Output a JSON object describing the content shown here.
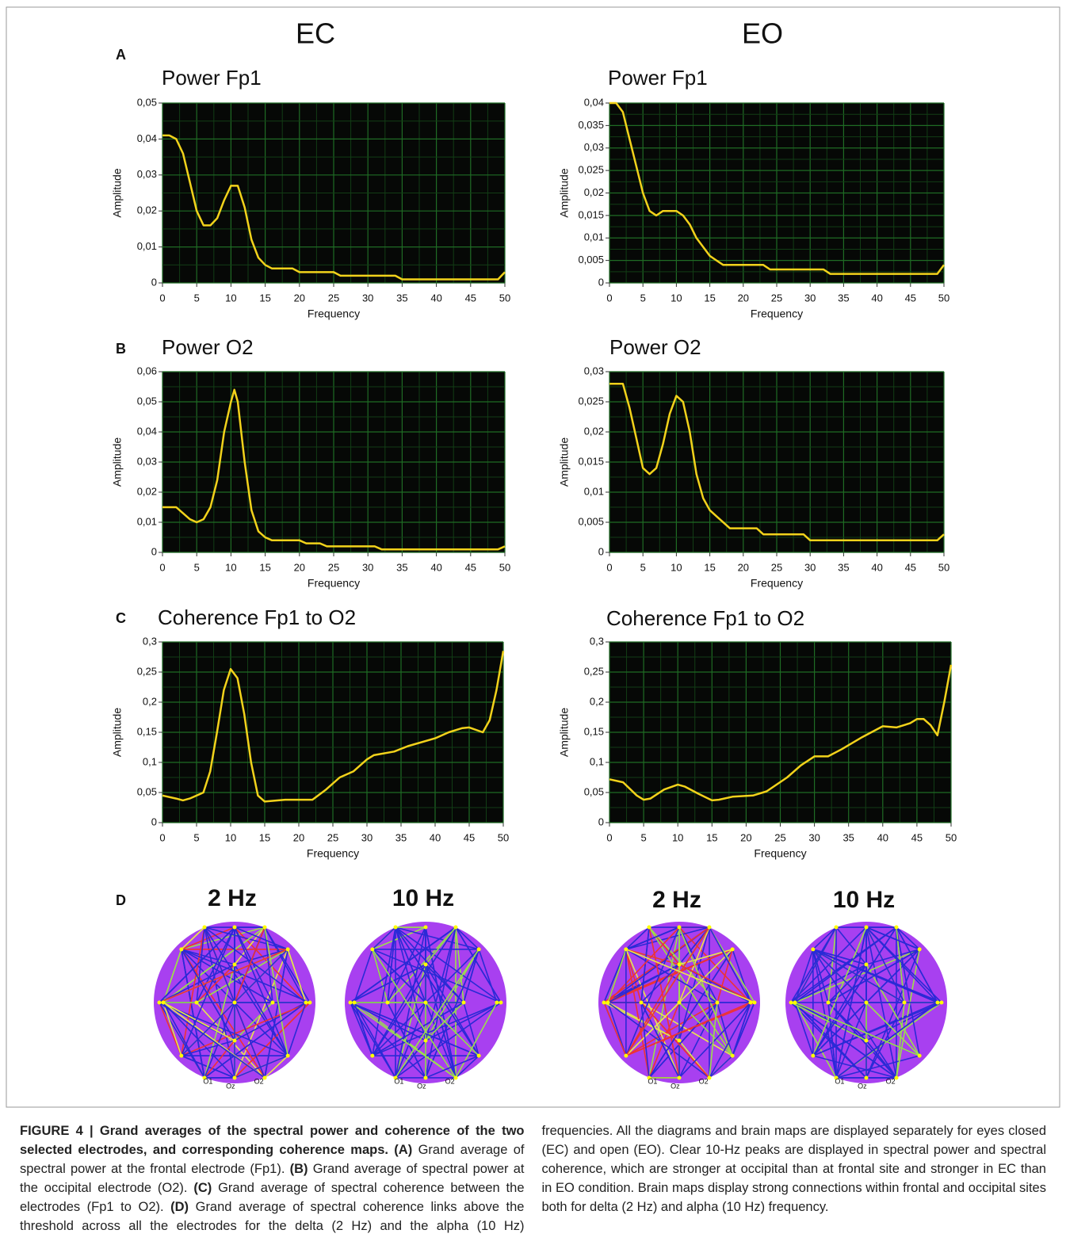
{
  "headers": {
    "left": "EC",
    "right": "EO"
  },
  "panels": [
    "A",
    "B",
    "C",
    "D"
  ],
  "maps": {
    "labels": [
      "2 Hz",
      "10 Hz",
      "2 Hz",
      "10 Hz"
    ],
    "electrodes": [
      "O1",
      "Oz",
      "O2"
    ]
  },
  "chart_data": [
    {
      "type": "line",
      "title": "Power Fp1",
      "xlabel": "Frequency",
      "ylabel": "Amplitude",
      "color": "#f2d21b",
      "grid": true,
      "x": [
        0,
        1,
        2,
        3,
        4,
        5,
        6,
        7,
        8,
        9,
        10,
        11,
        12,
        13,
        14,
        15,
        16,
        19,
        20,
        25,
        26,
        34,
        35,
        49,
        50
      ],
      "values": [
        0.041,
        0.041,
        0.04,
        0.036,
        0.028,
        0.02,
        0.016,
        0.016,
        0.018,
        0.023,
        0.027,
        0.027,
        0.021,
        0.012,
        0.007,
        0.005,
        0.004,
        0.004,
        0.003,
        0.003,
        0.002,
        0.002,
        0.001,
        0.001,
        0.003
      ],
      "xlim": [
        0,
        50
      ],
      "xticks": [
        0,
        5,
        10,
        15,
        20,
        25,
        30,
        35,
        40,
        45,
        50
      ],
      "ylim": [
        0,
        0.05
      ],
      "yticks": [
        0,
        {
          "value": 0.01,
          "label": "0,01"
        },
        {
          "value": 0.02,
          "label": "0,02"
        },
        {
          "value": 0.03,
          "label": "0,03"
        },
        {
          "value": 0.04,
          "label": "0,04"
        },
        {
          "value": 0.05,
          "label": "0,05"
        }
      ]
    },
    {
      "type": "line",
      "title": "Power Fp1",
      "xlabel": "Frequency",
      "ylabel": "Amplitude",
      "color": "#f2d21b",
      "grid": true,
      "x": [
        0,
        1,
        2,
        3,
        4,
        5,
        6,
        7,
        8,
        9,
        10,
        11,
        12,
        13,
        14,
        15,
        16,
        17,
        23,
        24,
        32,
        33,
        49,
        50
      ],
      "values": [
        0.04,
        0.04,
        0.038,
        0.032,
        0.026,
        0.02,
        0.016,
        0.015,
        0.016,
        0.016,
        0.016,
        0.015,
        0.013,
        0.01,
        0.008,
        0.006,
        0.005,
        0.004,
        0.004,
        0.003,
        0.003,
        0.002,
        0.002,
        0.004
      ],
      "xlim": [
        0,
        50
      ],
      "xticks": [
        0,
        5,
        10,
        15,
        20,
        25,
        30,
        35,
        40,
        45,
        50
      ],
      "ylim": [
        0,
        0.04
      ],
      "yticks": [
        0,
        {
          "value": 0.005,
          "label": "0,005"
        },
        {
          "value": 0.01,
          "label": "0,01"
        },
        {
          "value": 0.015,
          "label": "0,015"
        },
        {
          "value": 0.02,
          "label": "0,02"
        },
        {
          "value": 0.025,
          "label": "0,025"
        },
        {
          "value": 0.03,
          "label": "0,03"
        },
        {
          "value": 0.035,
          "label": "0,035"
        },
        {
          "value": 0.04,
          "label": "0,04"
        }
      ]
    },
    {
      "type": "line",
      "title": "Power O2",
      "xlabel": "Frequency",
      "ylabel": "Amplitude",
      "color": "#f2d21b",
      "grid": true,
      "x": [
        0,
        2,
        3,
        4,
        5,
        6,
        7,
        8,
        9,
        10,
        10.5,
        11,
        12,
        13,
        14,
        15,
        16,
        20,
        21,
        23,
        24,
        31,
        32,
        49,
        50
      ],
      "values": [
        0.015,
        0.015,
        0.013,
        0.011,
        0.01,
        0.011,
        0.015,
        0.024,
        0.04,
        0.05,
        0.054,
        0.05,
        0.03,
        0.014,
        0.007,
        0.005,
        0.004,
        0.004,
        0.003,
        0.003,
        0.002,
        0.002,
        0.001,
        0.001,
        0.002
      ],
      "xlim": [
        0,
        50
      ],
      "xticks": [
        0,
        5,
        10,
        15,
        20,
        25,
        30,
        35,
        40,
        45,
        50
      ],
      "ylim": [
        0,
        0.06
      ],
      "yticks": [
        0,
        {
          "value": 0.01,
          "label": "0,01"
        },
        {
          "value": 0.02,
          "label": "0,02"
        },
        {
          "value": 0.03,
          "label": "0,03"
        },
        {
          "value": 0.04,
          "label": "0,04"
        },
        {
          "value": 0.05,
          "label": "0,05"
        },
        {
          "value": 0.06,
          "label": "0,06"
        }
      ]
    },
    {
      "type": "line",
      "title": "Power O2",
      "xlabel": "Frequency",
      "ylabel": "Amplitude",
      "color": "#f2d21b",
      "grid": true,
      "x": [
        0,
        2,
        3,
        4,
        5,
        6,
        7,
        8,
        9,
        10,
        11,
        12,
        13,
        14,
        15,
        16,
        18,
        22,
        23,
        29,
        30,
        49,
        50
      ],
      "values": [
        0.028,
        0.028,
        0.024,
        0.019,
        0.014,
        0.013,
        0.014,
        0.018,
        0.023,
        0.026,
        0.025,
        0.02,
        0.013,
        0.009,
        0.007,
        0.006,
        0.004,
        0.004,
        0.003,
        0.003,
        0.002,
        0.002,
        0.003
      ],
      "xlim": [
        0,
        50
      ],
      "xticks": [
        0,
        5,
        10,
        15,
        20,
        25,
        30,
        35,
        40,
        45,
        50
      ],
      "ylim": [
        0,
        0.03
      ],
      "yticks": [
        0,
        {
          "value": 0.005,
          "label": "0,005"
        },
        {
          "value": 0.01,
          "label": "0,01"
        },
        {
          "value": 0.015,
          "label": "0,015"
        },
        {
          "value": 0.02,
          "label": "0,02"
        },
        {
          "value": 0.025,
          "label": "0,025"
        },
        {
          "value": 0.03,
          "label": "0,03"
        }
      ]
    },
    {
      "type": "line",
      "title": "Coherence Fp1 to O2",
      "xlabel": "Frequency",
      "ylabel": "Amplitude",
      "color": "#f2d21b",
      "grid": true,
      "x": [
        0,
        2,
        3,
        4,
        6,
        7,
        8,
        9,
        10,
        11,
        12,
        13,
        14,
        15,
        18,
        22,
        24,
        26,
        28,
        30,
        31,
        34,
        36,
        40,
        42,
        44,
        45,
        47,
        48,
        49,
        50
      ],
      "values": [
        0.045,
        0.04,
        0.037,
        0.04,
        0.05,
        0.085,
        0.15,
        0.22,
        0.255,
        0.24,
        0.18,
        0.1,
        0.045,
        0.035,
        0.038,
        0.038,
        0.055,
        0.075,
        0.085,
        0.105,
        0.112,
        0.118,
        0.127,
        0.14,
        0.15,
        0.157,
        0.158,
        0.15,
        0.17,
        0.22,
        0.285
      ],
      "xlim": [
        0,
        50
      ],
      "xticks": [
        0,
        5,
        10,
        15,
        20,
        25,
        30,
        35,
        40,
        45,
        50
      ],
      "ylim": [
        0,
        0.3
      ],
      "yticks": [
        0,
        {
          "value": 0.05,
          "label": "0,05"
        },
        {
          "value": 0.1,
          "label": "0,1"
        },
        {
          "value": 0.15,
          "label": "0,15"
        },
        {
          "value": 0.2,
          "label": "0,2"
        },
        {
          "value": 0.25,
          "label": "0,25"
        },
        {
          "value": 0.3,
          "label": "0,3"
        }
      ]
    },
    {
      "type": "line",
      "title": "Coherence Fp1 to O2",
      "xlabel": "Frequency",
      "ylabel": "Amplitude",
      "color": "#f2d21b",
      "grid": true,
      "x": [
        0,
        2,
        4,
        5,
        6,
        8,
        10,
        11,
        13,
        15,
        16,
        18,
        21,
        23,
        26,
        28,
        30,
        32,
        34,
        37,
        40,
        42,
        44,
        45,
        46,
        47,
        48,
        49,
        50
      ],
      "values": [
        0.072,
        0.067,
        0.045,
        0.038,
        0.04,
        0.055,
        0.063,
        0.06,
        0.048,
        0.037,
        0.038,
        0.043,
        0.045,
        0.052,
        0.075,
        0.095,
        0.11,
        0.11,
        0.122,
        0.142,
        0.16,
        0.158,
        0.165,
        0.172,
        0.172,
        0.162,
        0.145,
        0.2,
        0.262
      ],
      "xlim": [
        0,
        50
      ],
      "xticks": [
        0,
        5,
        10,
        15,
        20,
        25,
        30,
        35,
        40,
        45,
        50
      ],
      "ylim": [
        0,
        0.3
      ],
      "yticks": [
        0,
        {
          "value": 0.05,
          "label": "0,05"
        },
        {
          "value": 0.1,
          "label": "0,1"
        },
        {
          "value": 0.15,
          "label": "0,15"
        },
        {
          "value": 0.2,
          "label": "0,2"
        },
        {
          "value": 0.25,
          "label": "0,25"
        },
        {
          "value": 0.3,
          "label": "0,3"
        }
      ]
    }
  ],
  "caption": {
    "runs": [
      {
        "bold": true,
        "text": "FIGURE 4 | Grand averages of the spectral power and coherence of the two selected electrodes, and corresponding coherence maps. (A)"
      },
      {
        "bold": false,
        "text": " Grand average of spectral power at the frontal electrode (Fp1). "
      },
      {
        "bold": true,
        "text": "(B)"
      },
      {
        "bold": false,
        "text": " Grand average of spectral power at the occipital electrode (O2). "
      },
      {
        "bold": true,
        "text": "(C)"
      },
      {
        "bold": false,
        "text": " Grand average of spectral coherence between the electrodes (Fp1 to O2). "
      },
      {
        "bold": true,
        "text": "(D)"
      },
      {
        "bold": false,
        "text": " Grand average of spectral coherence links above the threshold across all the electrodes for the delta (2 Hz) and the alpha (10 Hz) frequencies. All the diagrams and brain maps are displayed separately for eyes closed (EC) and open (EO). Clear 10-Hz peaks are displayed in spectral power and spectral coherence, which are stronger at occipital than at frontal site and stronger in EC than in EO condition. Brain maps display strong connections within frontal and occipital sites both for delta (2 Hz) and alpha (10 Hz) frequency."
      }
    ]
  }
}
